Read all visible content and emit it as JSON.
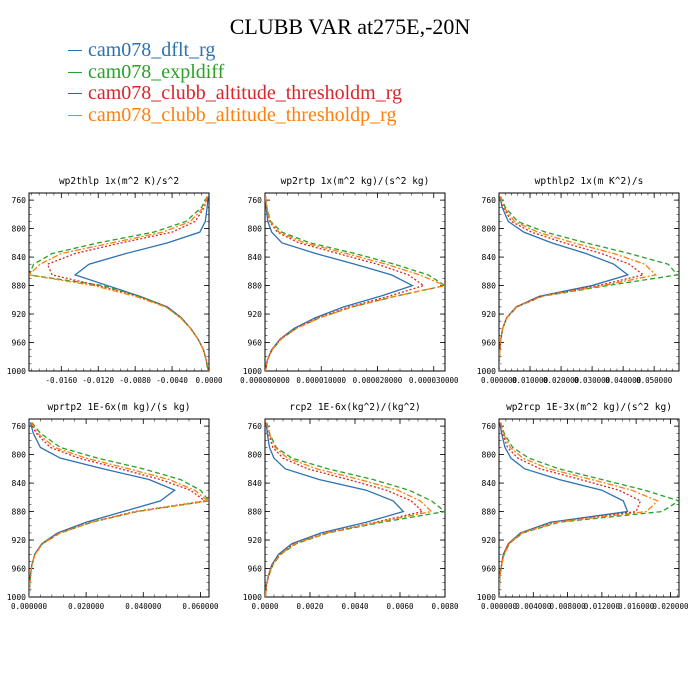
{
  "title": "CLUBB VAR at275E,-20N",
  "colors": {
    "dflt": "#2b72b2",
    "expl": "#2aa02a",
    "thrm": "#d62728",
    "thrp": "#ff7f0e"
  },
  "legend": [
    {
      "label": "cam078_dflt_rg",
      "color": "#2b72b2",
      "dash": ""
    },
    {
      "label": "cam078_expldiff",
      "color": "#2aa02a",
      "dash": "5,3"
    },
    {
      "label": "cam078_clubb_altitude_thresholdm_rg",
      "color": "#d62728",
      "dash": "2,2"
    },
    {
      "label": "cam078_clubb_altitude_thresholdp_rg",
      "color": "#ff7f0e",
      "dash": "6,2,2,2"
    }
  ],
  "chart_data": [
    {
      "type": "line",
      "title": "wp2thlp  1x(m^2 K)/s^2",
      "xlim": [
        -0.0195,
        0.0
      ],
      "ylim": [
        1000,
        750
      ],
      "xticks": [
        -0.016,
        -0.012,
        -0.008,
        -0.004,
        0.0
      ],
      "xtick_labels": [
        "-0.0160",
        "-0.0120",
        "-0.0080",
        "-0.0040",
        "0.0000"
      ],
      "yticks": [
        760,
        800,
        840,
        880,
        920,
        960,
        1000
      ],
      "y": [
        755,
        770,
        790,
        805,
        820,
        835,
        850,
        865,
        880,
        895,
        910,
        925,
        940,
        955,
        970,
        985,
        1000
      ],
      "series": [
        {
          "name": "cam078_dflt_rg",
          "values": [
            -0.0001,
            -0.0002,
            -0.0004,
            -0.001,
            -0.0045,
            -0.009,
            -0.013,
            -0.0145,
            -0.011,
            -0.0075,
            -0.0045,
            -0.003,
            -0.002,
            -0.0012,
            -0.0006,
            -0.0003,
            -0.0001
          ]
        },
        {
          "name": "cam078_expldiff",
          "values": [
            -0.0002,
            -0.0008,
            -0.0025,
            -0.006,
            -0.012,
            -0.017,
            -0.019,
            -0.0195,
            -0.0115,
            -0.0075,
            -0.0046,
            -0.0031,
            -0.002,
            -0.0012,
            -0.0006,
            -0.0003,
            -0.0001
          ]
        },
        {
          "name": "cam078_clubb_altitude_thresholdm_rg",
          "values": [
            -0.0002,
            -0.0005,
            -0.0015,
            -0.004,
            -0.0095,
            -0.0145,
            -0.0175,
            -0.017,
            -0.012,
            -0.0078,
            -0.0046,
            -0.0031,
            -0.002,
            -0.0012,
            -0.0006,
            -0.0003,
            -0.0001
          ]
        },
        {
          "name": "cam078_clubb_altitude_thresholdp_rg",
          "values": [
            -0.0002,
            -0.0006,
            -0.002,
            -0.005,
            -0.0105,
            -0.016,
            -0.0183,
            -0.0195,
            -0.0125,
            -0.008,
            -0.0047,
            -0.0031,
            -0.002,
            -0.0012,
            -0.0006,
            -0.0003,
            -0.0001
          ]
        }
      ]
    },
    {
      "type": "line",
      "title": "wp2rtp  1x(m^2 kg)/(s^2 kg)",
      "xlim": [
        0.0,
        3.2e-05
      ],
      "ylim": [
        1000,
        750
      ],
      "xticks": [
        0.0,
        1e-05,
        2e-05,
        3e-05
      ],
      "xtick_labels": [
        "0.000000000",
        "0.000010000",
        "0.000020000",
        "0.000030000"
      ],
      "yticks": [
        760,
        800,
        840,
        880,
        920,
        960,
        1000
      ],
      "y": [
        755,
        770,
        790,
        805,
        820,
        835,
        850,
        865,
        880,
        895,
        910,
        925,
        940,
        955,
        970,
        985,
        1000
      ],
      "series": [
        {
          "name": "cam078_dflt_rg",
          "values": [
            1e-07,
            2e-07,
            5e-07,
            1.2e-06,
            3e-06,
            9e-06,
            1.6e-05,
            2.25e-05,
            2.62e-05,
            2.05e-05,
            1.4e-05,
            9e-06,
            5.2e-06,
            2.7e-06,
            1.2e-06,
            4e-07,
            1e-07
          ]
        },
        {
          "name": "cam078_expldiff",
          "values": [
            1e-07,
            3e-07,
            1e-06,
            3e-06,
            8e-06,
            1.6e-05,
            2.3e-05,
            2.9e-05,
            3.2e-05,
            2.32e-05,
            1.55e-05,
            9.8e-06,
            5.6e-06,
            2.9e-06,
            1.3e-06,
            4e-07,
            1e-07
          ]
        },
        {
          "name": "cam078_clubb_altitude_thresholdm_rg",
          "values": [
            1e-07,
            3e-07,
            8e-07,
            2.2e-06,
            6e-06,
            1.3e-05,
            2e-05,
            2.55e-05,
            2.82e-05,
            2.2e-05,
            1.5e-05,
            9.5e-06,
            5.5e-06,
            2.8e-06,
            1.2e-06,
            4e-07,
            1e-07
          ]
        },
        {
          "name": "cam078_clubb_altitude_thresholdp_rg",
          "values": [
            1e-07,
            3e-07,
            9e-07,
            2.5e-06,
            7e-06,
            1.45e-05,
            2.15e-05,
            2.75e-05,
            3.2e-05,
            2.32e-05,
            1.55e-05,
            9.8e-06,
            5.6e-06,
            2.9e-06,
            1.3e-06,
            4e-07,
            1e-07
          ]
        }
      ]
    },
    {
      "type": "line",
      "title": "wpthlp2  1x(m K^2)/s",
      "xlim": [
        0.0,
        0.058
      ],
      "ylim": [
        1000,
        750
      ],
      "xticks": [
        0.0,
        0.01,
        0.02,
        0.03,
        0.04,
        0.05
      ],
      "xtick_labels": [
        "0.000000",
        "0.010000",
        "0.020000",
        "0.030000",
        "0.040000",
        "0.050000"
      ],
      "yticks": [
        760,
        800,
        840,
        880,
        920,
        960,
        1000
      ],
      "y": [
        755,
        770,
        790,
        805,
        820,
        835,
        850,
        865,
        880,
        895,
        910,
        925,
        940,
        955,
        970,
        985,
        1000
      ],
      "series": [
        {
          "name": "cam078_dflt_rg",
          "values": [
            0.0003,
            0.001,
            0.003,
            0.008,
            0.017,
            0.028,
            0.037,
            0.0415,
            0.03,
            0.013,
            0.0055,
            0.0025,
            0.0012,
            0.0006,
            0.0003,
            0.0001,
            5e-05
          ]
        },
        {
          "name": "cam078_expldiff",
          "values": [
            0.0005,
            0.002,
            0.006,
            0.015,
            0.028,
            0.042,
            0.0545,
            0.0575,
            0.035,
            0.014,
            0.0058,
            0.0026,
            0.0012,
            0.0006,
            0.0003,
            0.0001,
            5e-05
          ]
        },
        {
          "name": "cam078_clubb_altitude_thresholdm_rg",
          "values": [
            0.0004,
            0.0014,
            0.004,
            0.0105,
            0.021,
            0.033,
            0.042,
            0.0465,
            0.032,
            0.0135,
            0.0056,
            0.0025,
            0.0012,
            0.0006,
            0.0003,
            0.0001,
            5e-05
          ]
        },
        {
          "name": "cam078_clubb_altitude_thresholdp_rg",
          "values": [
            0.0004,
            0.0016,
            0.005,
            0.0125,
            0.024,
            0.037,
            0.047,
            0.0505,
            0.0335,
            0.0138,
            0.0057,
            0.0026,
            0.0012,
            0.0006,
            0.0003,
            0.0001,
            5e-05
          ]
        }
      ]
    },
    {
      "type": "line",
      "title": "wprtp2  1E-6x(m kg)/(s kg)",
      "xlim": [
        0.0,
        0.063
      ],
      "ylim": [
        1000,
        750
      ],
      "xticks": [
        0.0,
        0.02,
        0.04,
        0.06
      ],
      "xtick_labels": [
        "0.000000",
        "0.020000",
        "0.040000",
        "0.060000"
      ],
      "yticks": [
        760,
        800,
        840,
        880,
        920,
        960,
        1000
      ],
      "y": [
        755,
        770,
        790,
        805,
        820,
        835,
        850,
        865,
        880,
        895,
        910,
        925,
        940,
        955,
        970,
        985,
        1000
      ],
      "series": [
        {
          "name": "cam078_dflt_rg",
          "values": [
            0.0005,
            0.0015,
            0.004,
            0.011,
            0.026,
            0.042,
            0.051,
            0.046,
            0.033,
            0.02,
            0.01,
            0.0045,
            0.002,
            0.001,
            0.0005,
            0.0002,
            0.0001
          ]
        },
        {
          "name": "cam078_expldiff",
          "values": [
            0.001,
            0.004,
            0.011,
            0.024,
            0.04,
            0.053,
            0.06,
            0.063,
            0.038,
            0.022,
            0.011,
            0.0048,
            0.0021,
            0.001,
            0.0005,
            0.0002,
            0.0001
          ]
        },
        {
          "name": "cam078_clubb_altitude_thresholdm_rg",
          "values": [
            0.0007,
            0.0025,
            0.0075,
            0.0175,
            0.032,
            0.046,
            0.0565,
            0.0615,
            0.037,
            0.0215,
            0.0108,
            0.0047,
            0.0021,
            0.001,
            0.0005,
            0.0002,
            0.0001
          ]
        },
        {
          "name": "cam078_clubb_altitude_thresholdp_rg",
          "values": [
            0.0008,
            0.003,
            0.009,
            0.02,
            0.035,
            0.049,
            0.058,
            0.0625,
            0.0375,
            0.0218,
            0.0109,
            0.0048,
            0.0021,
            0.001,
            0.0005,
            0.0002,
            0.0001
          ]
        }
      ]
    },
    {
      "type": "line",
      "title": "rcp2  1E-6x(kg^2)/(kg^2)",
      "xlim": [
        0.0,
        0.008
      ],
      "ylim": [
        1000,
        750
      ],
      "xticks": [
        0.0,
        0.002,
        0.004,
        0.006,
        0.008
      ],
      "xtick_labels": [
        "0.0000",
        "0.0020",
        "0.0040",
        "0.0060",
        "0.0080"
      ],
      "yticks": [
        760,
        800,
        840,
        880,
        920,
        960,
        1000
      ],
      "y": [
        755,
        770,
        790,
        805,
        820,
        835,
        850,
        865,
        880,
        895,
        910,
        925,
        940,
        955,
        970,
        985,
        1000
      ],
      "series": [
        {
          "name": "cam078_dflt_rg",
          "values": [
            5e-05,
            0.0001,
            0.0002,
            0.0004,
            0.0009,
            0.0024,
            0.0045,
            0.0057,
            0.00615,
            0.0045,
            0.0025,
            0.0012,
            0.0006,
            0.0003,
            0.00015,
            5e-05,
            2e-05
          ]
        },
        {
          "name": "cam078_expldiff",
          "values": [
            8e-05,
            0.0002,
            0.0005,
            0.0012,
            0.0028,
            0.0048,
            0.0064,
            0.0074,
            0.008,
            0.0052,
            0.0028,
            0.0014,
            0.0007,
            0.00035,
            0.00017,
            6e-05,
            2e-05
          ]
        },
        {
          "name": "cam078_clubb_altitude_thresholdm_rg",
          "values": [
            6e-05,
            0.00015,
            0.00035,
            0.0008,
            0.0019,
            0.0037,
            0.0054,
            0.0065,
            0.007,
            0.0049,
            0.0027,
            0.0013,
            0.00065,
            0.00032,
            0.00016,
            5e-05,
            2e-05
          ]
        },
        {
          "name": "cam078_clubb_altitude_thresholdp_rg",
          "values": [
            7e-05,
            0.00018,
            0.00045,
            0.001,
            0.0023,
            0.0042,
            0.0059,
            0.0069,
            0.0074,
            0.005,
            0.00275,
            0.00135,
            0.00068,
            0.00034,
            0.00016,
            6e-05,
            2e-05
          ]
        }
      ]
    },
    {
      "type": "line",
      "title": "wp2rcp  1E-3x(m^2 kg)/(s^2 kg)",
      "xlim": [
        0.0,
        0.021
      ],
      "ylim": [
        1000,
        750
      ],
      "xticks": [
        0.0,
        0.004,
        0.008,
        0.012,
        0.016,
        0.02
      ],
      "xtick_labels": [
        "0.000000",
        "0.004000",
        "0.008000",
        "0.012000",
        "0.016000",
        "0.020000"
      ],
      "yticks": [
        760,
        800,
        840,
        880,
        920,
        960,
        1000
      ],
      "y": [
        755,
        770,
        790,
        805,
        820,
        835,
        850,
        865,
        880,
        895,
        910,
        925,
        940,
        955,
        970,
        985,
        1000
      ],
      "series": [
        {
          "name": "cam078_dflt_rg",
          "values": [
            0.0001,
            0.0003,
            0.0007,
            0.0014,
            0.003,
            0.007,
            0.012,
            0.0145,
            0.015,
            0.006,
            0.0025,
            0.0011,
            0.0005,
            0.0003,
            0.0001,
            5e-05,
            2e-05
          ]
        },
        {
          "name": "cam078_expldiff",
          "values": [
            0.0002,
            0.0006,
            0.0016,
            0.0035,
            0.007,
            0.012,
            0.017,
            0.021,
            0.019,
            0.007,
            0.0028,
            0.0012,
            0.0006,
            0.0003,
            0.0001,
            5e-05,
            2e-05
          ]
        },
        {
          "name": "cam078_clubb_altitude_thresholdm_rg",
          "values": [
            0.0001,
            0.0004,
            0.001,
            0.0022,
            0.0048,
            0.0095,
            0.014,
            0.0165,
            0.016,
            0.0064,
            0.0026,
            0.0011,
            0.0005,
            0.0003,
            0.0001,
            5e-05,
            2e-05
          ]
        },
        {
          "name": "cam078_clubb_altitude_thresholdp_rg",
          "values": [
            0.0002,
            0.0005,
            0.0013,
            0.0028,
            0.0058,
            0.0108,
            0.0155,
            0.0185,
            0.0172,
            0.0067,
            0.0027,
            0.0012,
            0.0006,
            0.0003,
            0.0001,
            5e-05,
            2e-05
          ]
        }
      ]
    }
  ]
}
